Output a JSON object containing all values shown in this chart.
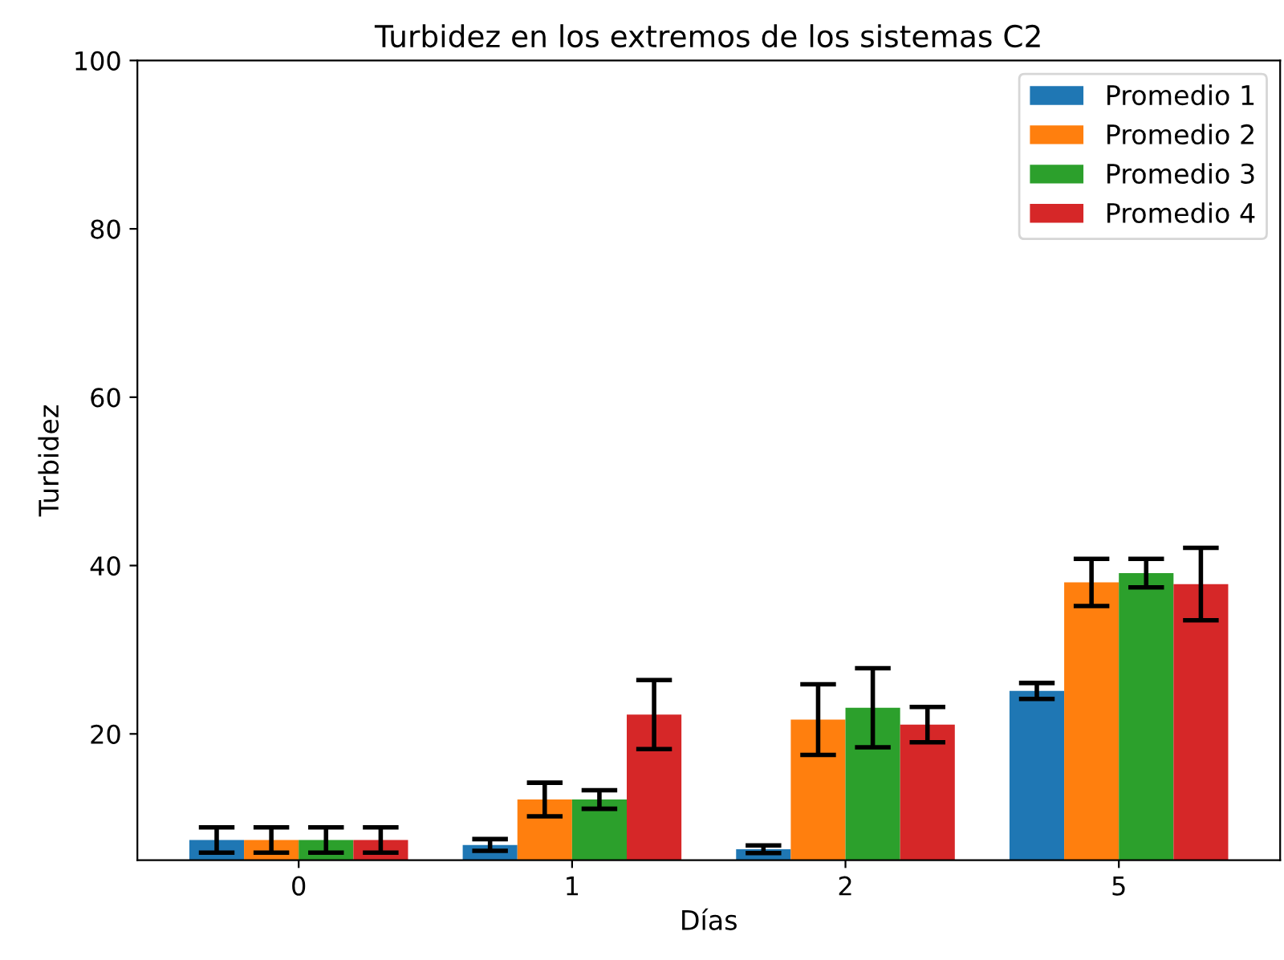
{
  "chart_data": {
    "type": "bar",
    "title": "Turbidez en los extremos de los sistemas C2",
    "xlabel": "Días",
    "ylabel": "Turbidez",
    "categories": [
      "0",
      "1",
      "2",
      "5"
    ],
    "series": [
      {
        "name": "Promedio 1",
        "color": "#1f77b4",
        "values": [
          7.4,
          6.8,
          6.3,
          25.1
        ],
        "errors": [
          1.5,
          0.7,
          0.45,
          0.95
        ]
      },
      {
        "name": "Promedio 2",
        "color": "#ff7f0e",
        "values": [
          7.4,
          12.2,
          21.7,
          38.0
        ],
        "errors": [
          1.5,
          2.0,
          4.2,
          2.8
        ]
      },
      {
        "name": "Promedio 3",
        "color": "#2ca02c",
        "values": [
          7.4,
          12.2,
          23.1,
          39.1
        ],
        "errors": [
          1.5,
          1.1,
          4.7,
          1.7
        ]
      },
      {
        "name": "Promedio 4",
        "color": "#d62728",
        "values": [
          7.4,
          22.3,
          21.1,
          37.8
        ],
        "errors": [
          1.5,
          4.1,
          2.1,
          4.3
        ]
      }
    ],
    "ylim": [
      5,
      100
    ],
    "yticks": [
      20,
      40,
      60,
      80,
      100
    ],
    "grid": false,
    "legend": "top right"
  }
}
